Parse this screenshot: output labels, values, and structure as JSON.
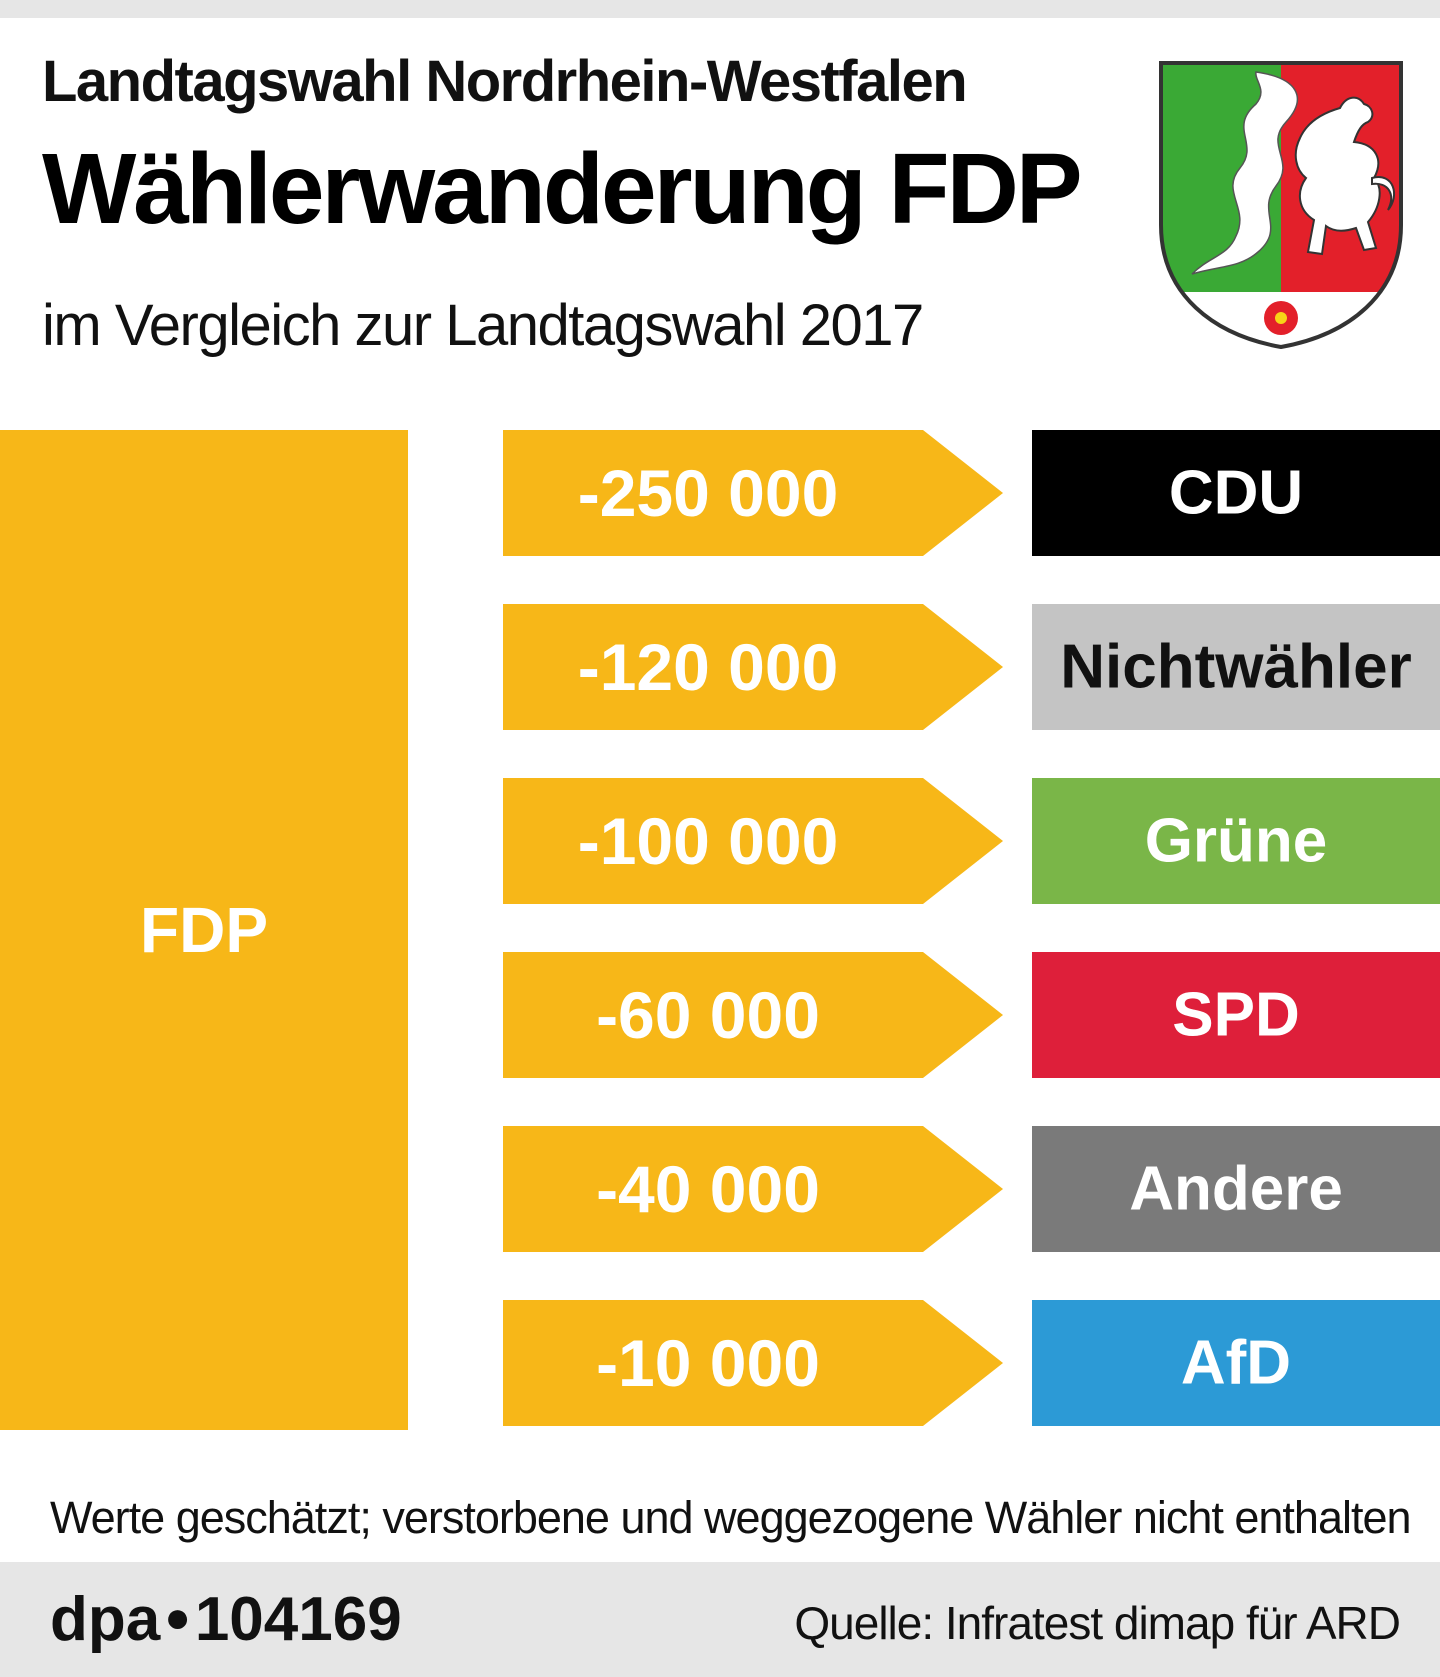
{
  "header": {
    "supertitle": "Landtagswahl Nordrhein-Westfalen",
    "title": "Wählerwanderung FDP",
    "subtitle": "im Vergleich zur Landtagswahl 2017"
  },
  "chart_data": {
    "type": "bar",
    "source_label": "FDP",
    "categories": [
      "CDU",
      "Nichtwähler",
      "Grüne",
      "SPD",
      "Andere",
      "AfD"
    ],
    "values": [
      -250000,
      -120000,
      -100000,
      -60000,
      -40000,
      -10000
    ],
    "value_labels": [
      "-250 000",
      "-120 000",
      "-100 000",
      "-60 000",
      "-40 000",
      "-10 000"
    ],
    "colors": {
      "FDP": "#f7b718",
      "CDU": "#000000",
      "Nichtwähler": "#c4c4c4",
      "Grüne": "#7ab648",
      "SPD": "#de1f3a",
      "Andere": "#7a7a7a",
      "AfD": "#2c9ad6"
    },
    "label_colors": {
      "CDU": "#ffffff",
      "Nichtwähler": "#111111",
      "Grüne": "#ffffff",
      "SPD": "#ffffff",
      "Andere": "#ffffff",
      "AfD": "#ffffff"
    }
  },
  "footer": {
    "note": "Werte geschätzt; verstorbene und weggezogene Wähler nicht enthalten",
    "agency": "dpa",
    "id": "104169",
    "source": "Quelle: Infratest dimap für ARD"
  },
  "crest": {
    "name": "coat-of-arms-nrw",
    "colors": {
      "green": "#3aa935",
      "red": "#e3202a",
      "white": "#ffffff",
      "river": "#ffffff"
    }
  }
}
